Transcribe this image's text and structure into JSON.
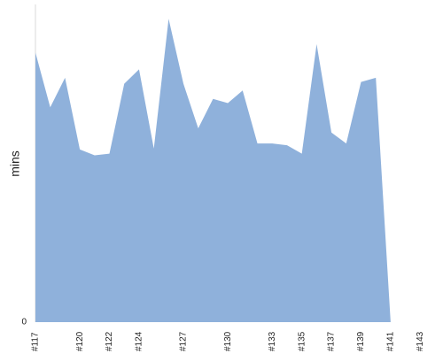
{
  "chart_data": {
    "type": "area",
    "ylabel": "mins",
    "y_tick_labels": [
      "0"
    ],
    "x_tick_labels": [
      "#117",
      "#120",
      "#122",
      "#124",
      "#127",
      "#130",
      "#133",
      "#135",
      "#137",
      "#139",
      "#141",
      "#143"
    ],
    "ylim": [
      0,
      375
    ],
    "grid": false,
    "series": [
      {
        "color": "#8fb1db",
        "x": [
          "#117",
          "#118",
          "#119",
          "#120",
          "#121",
          "#122",
          "#123",
          "#124",
          "#125",
          "#126",
          "#127",
          "#128",
          "#129",
          "#130",
          "#131",
          "#132",
          "#133",
          "#134",
          "#135",
          "#136",
          "#137",
          "#138",
          "#139",
          "#140",
          "#141",
          "#142",
          "#143",
          "#144"
        ],
        "values": [
          320,
          255,
          290,
          205,
          198,
          200,
          283,
          300,
          206,
          360,
          283,
          230,
          265,
          260,
          275,
          212,
          212,
          210,
          200,
          330,
          225,
          212,
          285,
          290,
          0,
          0,
          0,
          0
        ]
      }
    ]
  }
}
